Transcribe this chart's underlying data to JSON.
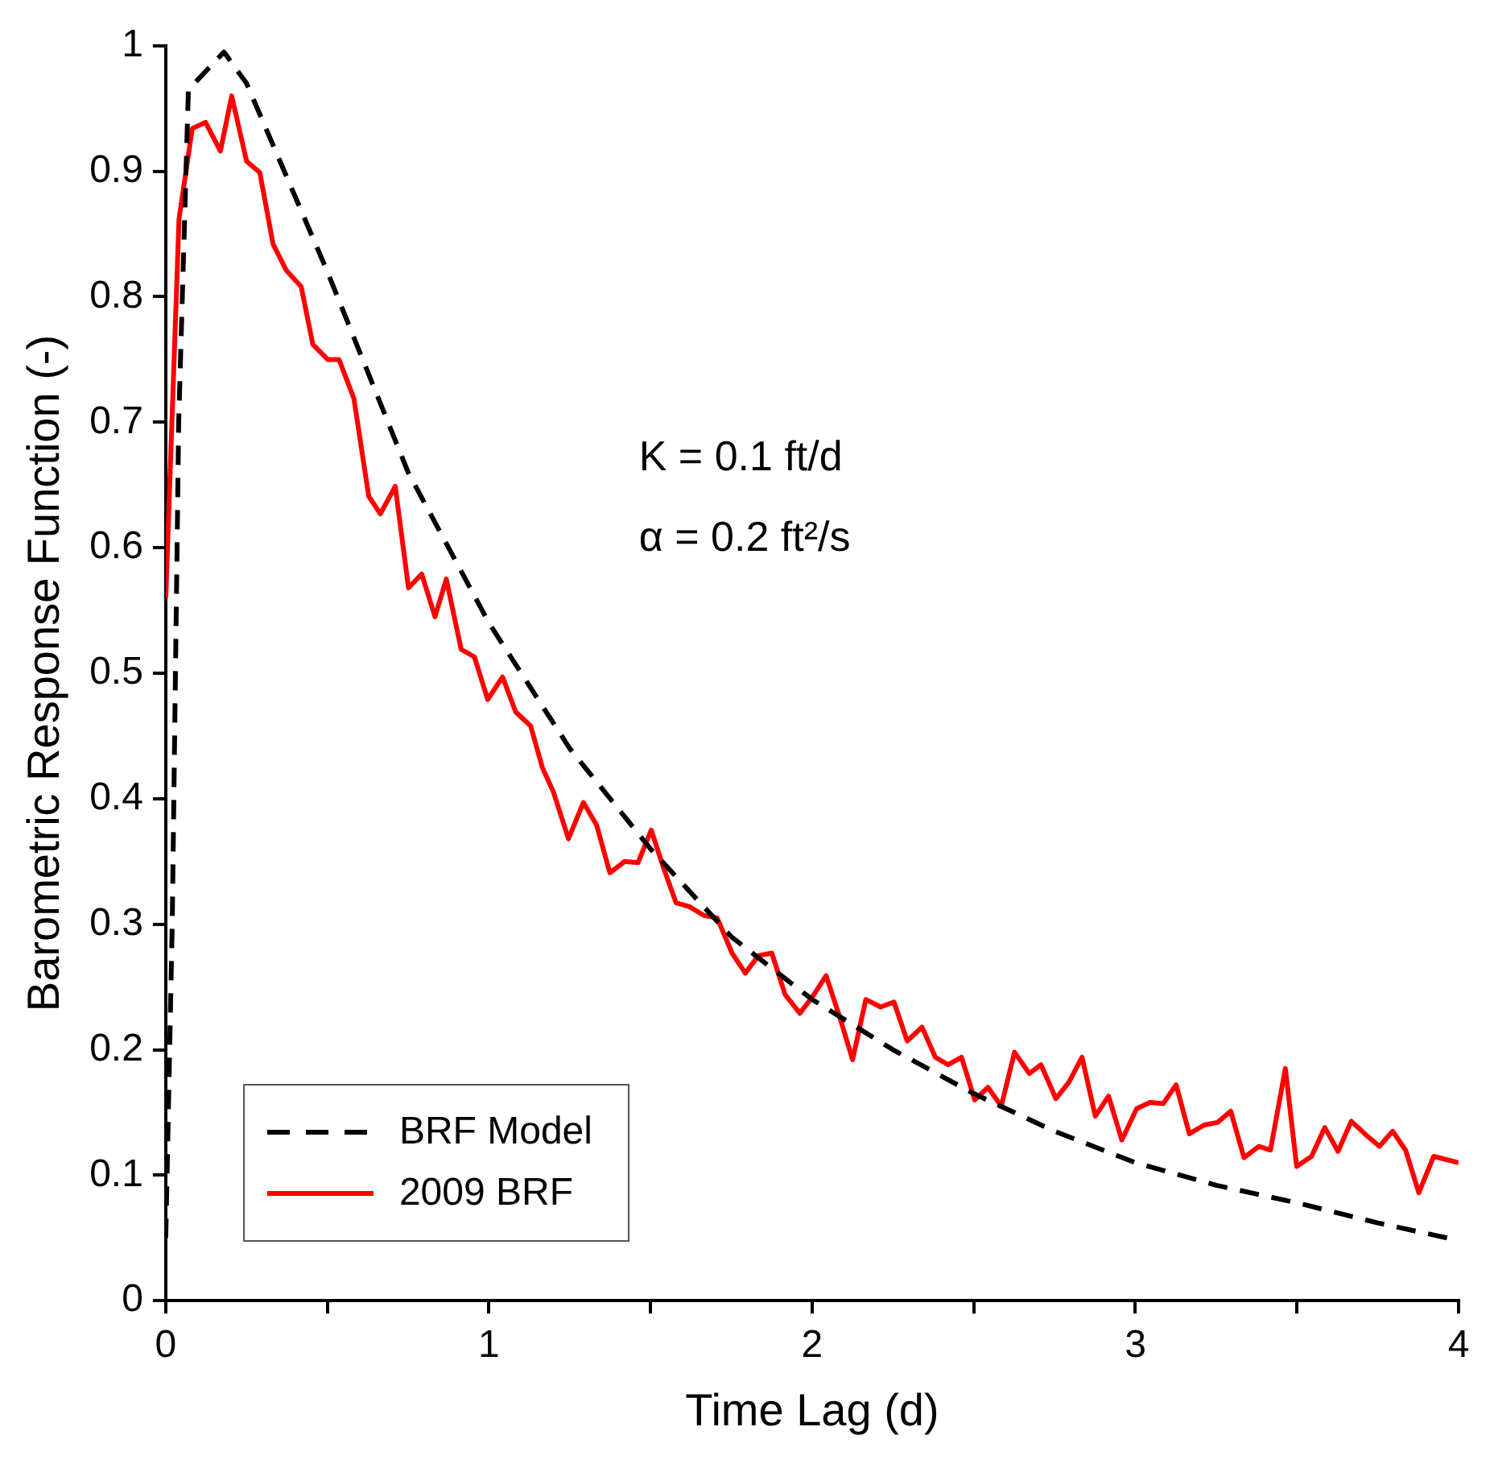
{
  "chart_data": {
    "type": "line",
    "xlabel": "Time Lag (d)",
    "ylabel": "Barometric Response Function (-)",
    "xlim": [
      0,
      4
    ],
    "xticks": [
      0,
      {
        "value": 0.5,
        "label": null
      },
      1,
      {
        "value": 1.5,
        "label": null
      },
      2,
      {
        "value": 2.5,
        "label": null
      },
      3,
      {
        "value": 3.5,
        "label": null
      },
      4
    ],
    "ylim": [
      0,
      1
    ],
    "yticks": [
      0,
      0.1,
      0.2,
      0.3,
      0.4,
      0.5,
      0.6,
      0.7,
      0.8,
      0.9,
      1
    ],
    "grid": false,
    "legend": "bottom left",
    "marker": "none",
    "annotations": [
      "K = 0.1 ft/d",
      "α = 0.2 ft²/s"
    ],
    "series": [
      {
        "name": "BRF Model",
        "color": "#000000",
        "line_style": "dashed",
        "x": [
          0,
          0.02,
          0.04,
          0.07,
          0.18,
          0.25,
          0.35,
          0.5,
          0.75,
          1.0,
          1.25,
          1.5,
          1.75,
          2.0,
          2.25,
          2.5,
          2.75,
          3.0,
          3.25,
          3.5,
          3.75,
          4.0
        ],
        "values": [
          0.05,
          0.3,
          0.7,
          0.965,
          0.995,
          0.97,
          0.91,
          0.82,
          0.66,
          0.54,
          0.44,
          0.36,
          0.29,
          0.24,
          0.2,
          0.165,
          0.135,
          0.11,
          0.092,
          0.078,
          0.062,
          0.048
        ]
      },
      {
        "name": "2009 BRF",
        "color": "#ff0000",
        "line_style": "solid",
        "x": [
          0,
          0.041,
          0.082,
          0.123,
          0.169,
          0.204,
          0.25,
          0.291,
          0.332,
          0.373,
          0.419,
          0.455,
          0.501,
          0.536,
          0.582,
          0.628,
          0.664,
          0.71,
          0.751,
          0.792,
          0.833,
          0.868,
          0.914,
          0.955,
          0.996,
          1.042,
          1.083,
          1.129,
          1.165,
          1.2,
          1.246,
          1.292,
          1.333,
          1.374,
          1.42,
          1.461,
          1.502,
          1.54,
          1.579,
          1.62,
          1.665,
          1.706,
          1.752,
          1.793,
          1.834,
          1.875,
          1.916,
          1.962,
          2.003,
          2.043,
          2.084,
          2.125,
          2.166,
          2.212,
          2.253,
          2.294,
          2.34,
          2.381,
          2.421,
          2.462,
          2.503,
          2.544,
          2.585,
          2.626,
          2.672,
          2.708,
          2.754,
          2.794,
          2.835,
          2.876,
          2.917,
          2.958,
          3.004,
          3.045,
          3.086,
          3.126,
          3.167,
          3.213,
          3.254,
          3.295,
          3.336,
          3.382,
          3.418,
          3.464,
          3.499,
          3.545,
          3.586,
          3.627,
          3.668,
          3.714,
          3.755,
          3.796,
          3.836,
          3.877,
          3.923,
          4.0
        ],
        "values": [
          0.56,
          0.862,
          0.934,
          0.939,
          0.916,
          0.96,
          0.908,
          0.899,
          0.842,
          0.821,
          0.808,
          0.762,
          0.75,
          0.75,
          0.719,
          0.641,
          0.627,
          0.649,
          0.568,
          0.579,
          0.545,
          0.575,
          0.519,
          0.513,
          0.479,
          0.497,
          0.469,
          0.458,
          0.425,
          0.405,
          0.368,
          0.397,
          0.379,
          0.341,
          0.35,
          0.349,
          0.375,
          0.345,
          0.317,
          0.314,
          0.307,
          0.305,
          0.277,
          0.261,
          0.275,
          0.277,
          0.244,
          0.229,
          0.243,
          0.259,
          0.227,
          0.192,
          0.24,
          0.234,
          0.238,
          0.207,
          0.218,
          0.194,
          0.188,
          0.194,
          0.16,
          0.17,
          0.155,
          0.198,
          0.181,
          0.188,
          0.161,
          0.174,
          0.194,
          0.147,
          0.163,
          0.128,
          0.153,
          0.158,
          0.157,
          0.172,
          0.133,
          0.14,
          0.142,
          0.151,
          0.114,
          0.123,
          0.12,
          0.185,
          0.107,
          0.115,
          0.138,
          0.119,
          0.143,
          0.132,
          0.123,
          0.135,
          0.12,
          0.086,
          0.115,
          0.11
        ]
      }
    ]
  }
}
